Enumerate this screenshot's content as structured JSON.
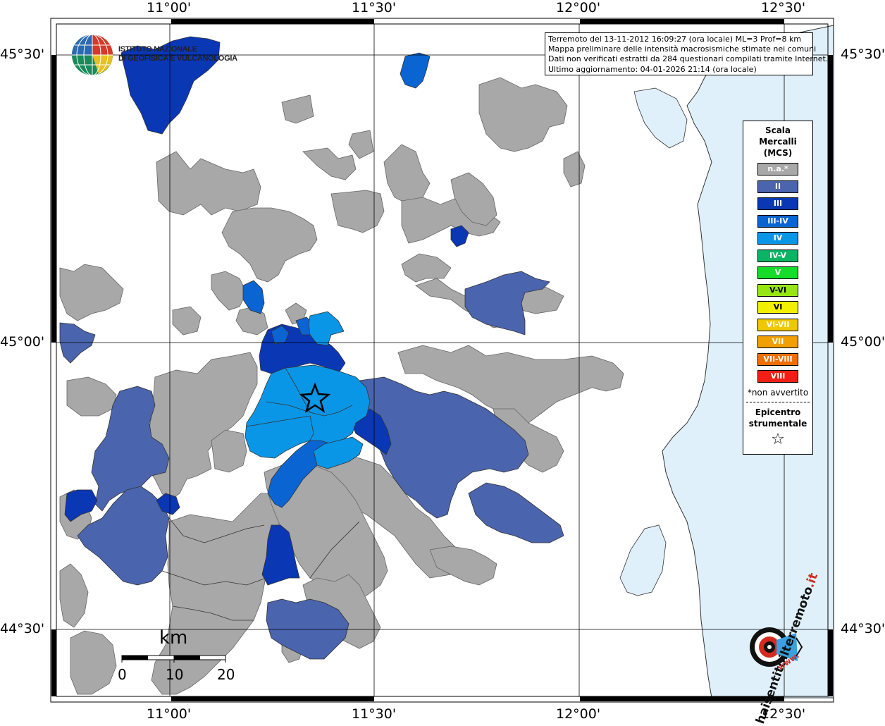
{
  "info": {
    "line1": "Terremoto del 13-11-2012 16:09:27 (ora locale) ML=3 Prof=8 km",
    "line2": "Mappa preliminare delle intensità macrosismiche stimate nei comuni",
    "line3": "Dati non verificati estratti da 284 questionari compilati tramite Internet.",
    "line4": "Ultimo aggiornamento: 04-01-2026 21:14 (ora locale)"
  },
  "logo": {
    "name_line1": "ISTITUTO NAZIONALE",
    "name_line2": "DI GEOFISICA E VULCANOLOGIA",
    "site_main": "haisentitoilterremoto",
    "site_tld": ".it",
    "site_prefix": "www."
  },
  "axes": {
    "lon_labels": [
      "11°00'",
      "11°30'",
      "12°00'",
      "12°30'"
    ],
    "lat_labels": [
      "45°30'",
      "45°00'",
      "44°30'"
    ]
  },
  "legend": {
    "title_line1": "Scala",
    "title_line2": "Mercalli",
    "title_line3": "(MCS)",
    "items": [
      {
        "label": "n.a.*",
        "color": "#a8a8a8"
      },
      {
        "label": "II",
        "color": "#4a64ae"
      },
      {
        "label": "III",
        "color": "#0a37b4"
      },
      {
        "label": "III-IV",
        "color": "#0a64d2"
      },
      {
        "label": "IV",
        "color": "#0a96e6"
      },
      {
        "label": "IV-V",
        "color": "#0ab464"
      },
      {
        "label": "V",
        "color": "#14dc28"
      },
      {
        "label": "V-VI",
        "color": "#96e614"
      },
      {
        "label": "VI",
        "color": "#f0f000"
      },
      {
        "label": "VI-VII",
        "color": "#f0c800"
      },
      {
        "label": "VII",
        "color": "#f0a000"
      },
      {
        "label": "VII-VIII",
        "color": "#f06e00"
      },
      {
        "label": "VIII",
        "color": "#f01e14"
      }
    ],
    "note": "*non avvertito",
    "epicenter_line1": "Epicentro",
    "epicenter_line2": "strumentale"
  },
  "scalebar": {
    "unit": "km",
    "labels": [
      "0",
      "10",
      "20"
    ]
  },
  "colors": {
    "na": "#a8a8a8",
    "ii": "#4a64ae",
    "iii": "#0a37b4",
    "iii_iv": "#0a64d2",
    "iv": "#0a96e6",
    "sea": "#dff0fb",
    "coast": "#333333"
  }
}
